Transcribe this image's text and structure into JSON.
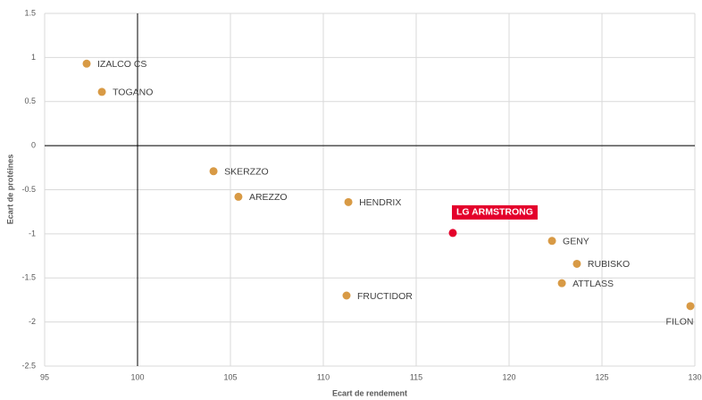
{
  "chart_data": {
    "type": "scatter",
    "xlabel": "Ecart de rendement",
    "ylabel": "Ecart de protéines",
    "point_labels": [
      "IZALCO CS",
      "TOGANO",
      "SKERZZO",
      "AREZZO",
      "HENDRIX",
      "FRUCTIDOR",
      "LG ARMSTRONG",
      "GENY",
      "RUBISKO",
      "ATTLASS",
      "FILON"
    ],
    "x": [
      97.26,
      98.08,
      104.09,
      105.43,
      111.35,
      111.25,
      116.97,
      122.31,
      123.65,
      122.84,
      129.76
    ],
    "values": [
      0.93,
      0.61,
      -0.29,
      -0.58,
      -0.64,
      -1.7,
      -0.99,
      -1.08,
      -1.34,
      -1.56,
      -1.82
    ],
    "colors": [
      "#d89a45",
      "#d89a45",
      "#d89a45",
      "#d89a45",
      "#d89a45",
      "#d89a45",
      "#e4002b",
      "#d89a45",
      "#d89a45",
      "#d89a45",
      "#d89a45"
    ],
    "xlim": [
      95,
      130
    ],
    "xticks": [
      95,
      100,
      105,
      110,
      115,
      120,
      125,
      130
    ],
    "ylim": [
      -2.5,
      1.5
    ],
    "yticks": [
      1.5,
      1,
      0.5,
      0,
      -0.5,
      -1,
      -1.5,
      -2,
      -2.5
    ],
    "crosses": {
      "x": 100,
      "y": 0
    },
    "grid": true
  }
}
